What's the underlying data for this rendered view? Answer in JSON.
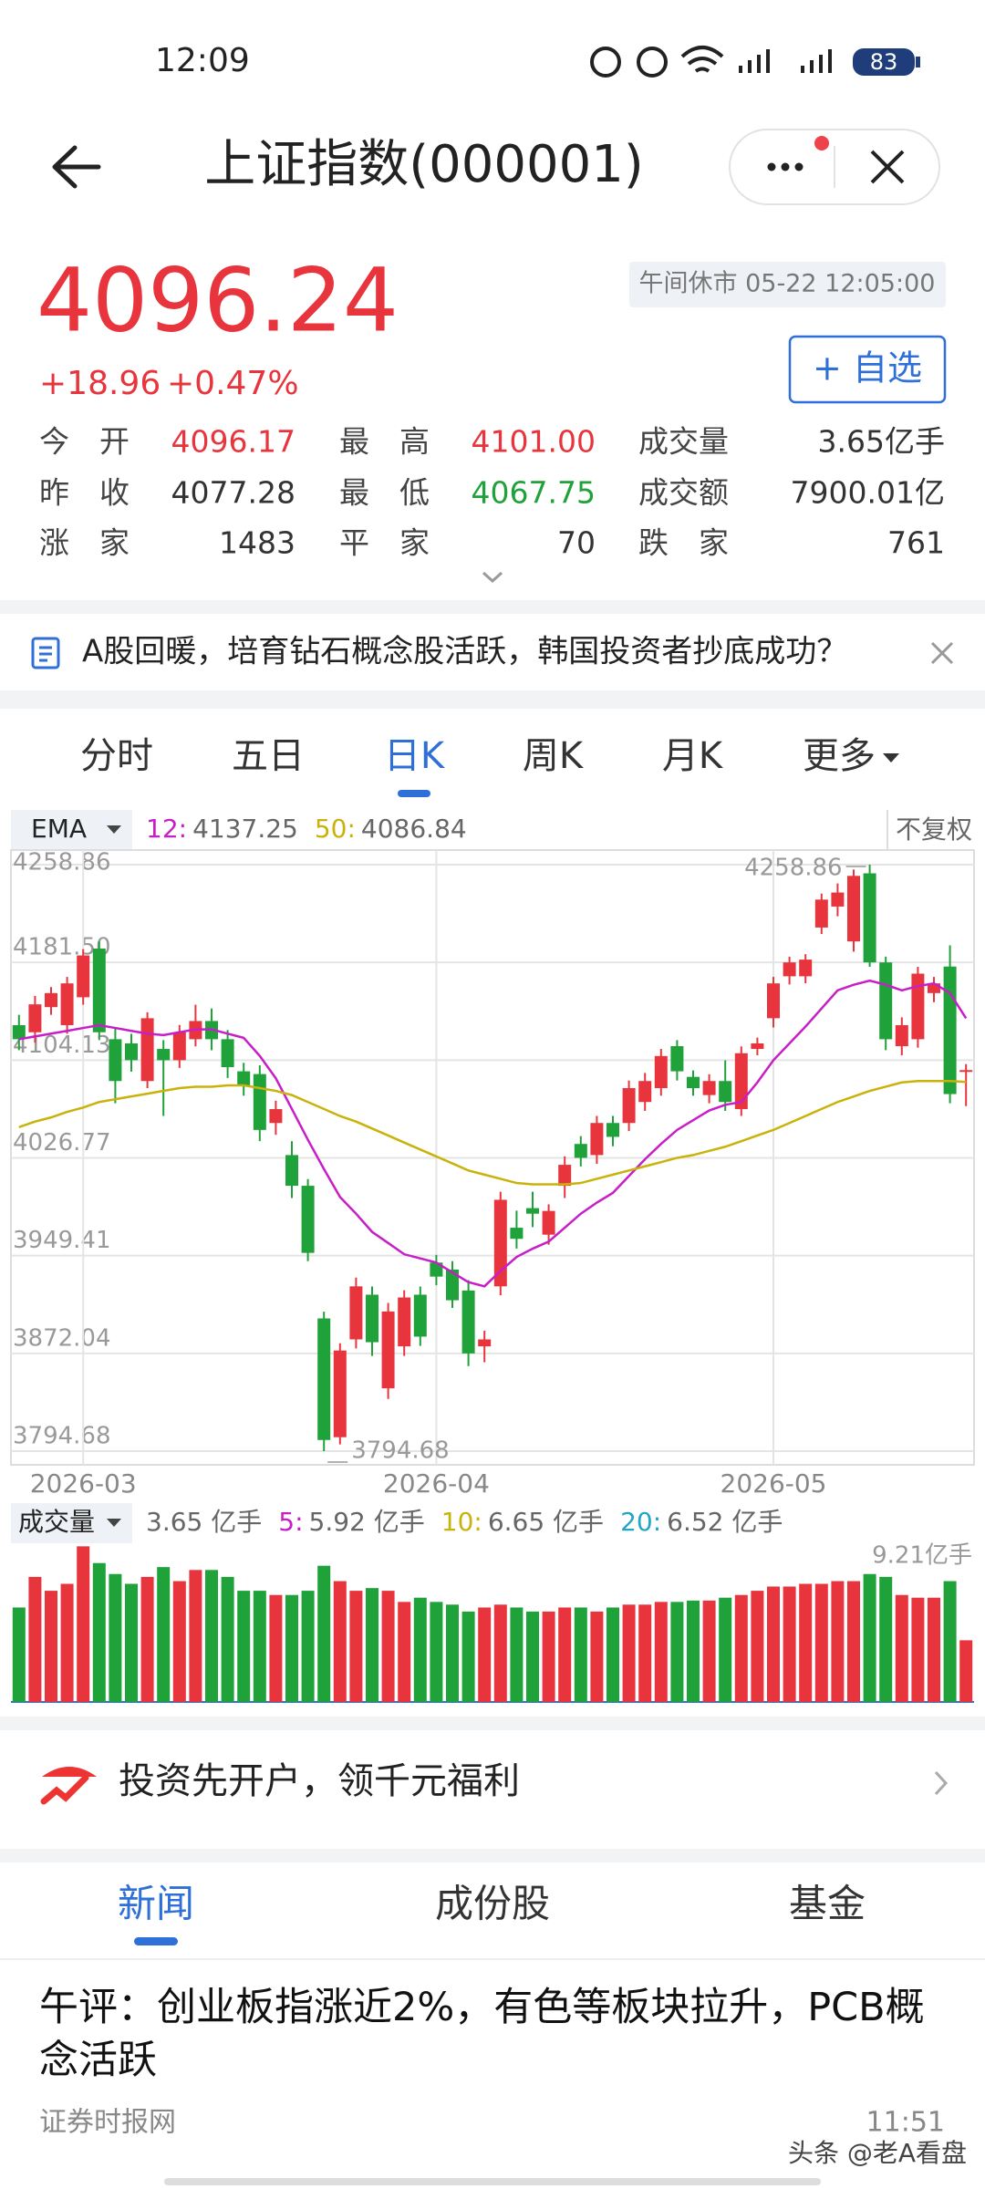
{
  "status_bar": {
    "time": "12:09",
    "battery": "83"
  },
  "header": {
    "title": "上证指数(000001)"
  },
  "quote": {
    "price": "4096.24",
    "change": "+18.96",
    "change_pct": "+0.47%",
    "market_status": "午间休市 05-22 12:05:00",
    "watch_button": "+ 自选",
    "stats": [
      [
        "今　开",
        "4096.17",
        "最　高",
        "4101.00",
        "成交量",
        "3.65亿手"
      ],
      [
        "昨　收",
        "4077.28",
        "最　低",
        "4067.75",
        "成交额",
        "7900.01亿"
      ],
      [
        "涨　家",
        "1483",
        "平　家",
        "70",
        "跌　家",
        "761"
      ]
    ]
  },
  "news_ticker": "A股回暖，培育钻石概念股活跃，韩国投资者抄底成功？",
  "period_tabs": {
    "items": [
      "分时",
      "五日",
      "日K",
      "周K",
      "月K",
      "更多"
    ],
    "active": 2
  },
  "chart_data": [
    {
      "type": "candlestick",
      "indicator": "EMA",
      "adjust": "不复权",
      "categories": [
        null,
        null,
        null,
        null,
        "2026-03",
        null,
        null,
        null,
        null,
        null,
        null,
        null,
        null,
        null,
        null,
        null,
        null,
        null,
        null,
        null,
        null,
        null,
        null,
        null,
        null,
        null,
        "2026-04",
        null,
        null,
        null,
        null,
        null,
        null,
        null,
        null,
        null,
        null,
        null,
        null,
        null,
        null,
        null,
        null,
        null,
        null,
        null,
        null,
        "2026-05",
        null,
        null,
        null,
        null,
        null,
        null,
        null,
        null,
        null,
        null,
        null,
        null
      ],
      "open": [
        4131.8,
        4126.2,
        4146.1,
        4131.8,
        4153.9,
        4192.5,
        4120.7,
        4117.4,
        4087.6,
        4113.0,
        4104.1,
        4120.7,
        4135.1,
        4120.7,
        4095.3,
        4093.1,
        4054.4,
        4029.0,
        4004.7,
        3899.7,
        3805.7,
        3883.1,
        3918.5,
        3844.4,
        3877.6,
        3918.5,
        3943.9,
        3938.4,
        3921.8,
        3877.6,
        3925.1,
        3971.5,
        3987.0,
        3966.0,
        4004.7,
        4037.8,
        4029.0,
        4054.4,
        4054.4,
        4071.0,
        4082.0,
        4115.2,
        4090.9,
        4076.5,
        4087.6,
        4065.4,
        4113.0,
        4137.3,
        4170.5,
        4170.5,
        4209.1,
        4225.7,
        4198.1,
        4252.0,
        4181.5,
        4115.2,
        4120.7,
        4157.2,
        4178.2,
        4096.17
      ],
      "high": [
        4140,
        4155,
        4162,
        4170,
        4192,
        4198,
        4130,
        4125,
        4142,
        4120,
        4132,
        4148,
        4145,
        4128,
        4102,
        4100,
        4072,
        4040,
        4010,
        3905,
        3880,
        3932,
        3925,
        3912,
        3922,
        3925,
        3950,
        3945,
        3930,
        3890,
        4000,
        3985,
        4000,
        3990,
        4028,
        4044,
        4060,
        4060,
        4088,
        4094,
        4113,
        4120,
        4096,
        4093,
        4104,
        4115,
        4122,
        4170,
        4186,
        4188,
        4236,
        4244,
        4255,
        4258.86,
        4186,
        4138,
        4178,
        4170,
        4195,
        4101
      ],
      "low": [
        4112,
        4118,
        4140,
        4125,
        4148,
        4120,
        4070,
        4095,
        4082,
        4060,
        4098,
        4115,
        4112,
        4090,
        4076,
        4040,
        4045,
        3995,
        3945,
        3794.68,
        3800,
        3876,
        3870,
        3836,
        3870,
        3878,
        3926,
        3908,
        3862,
        3865,
        3918,
        3955,
        3972,
        3958,
        3995,
        4020,
        4022,
        4036,
        4048,
        4064,
        4076,
        4088,
        4076,
        4070,
        4064,
        4060,
        4108,
        4130,
        4164,
        4165,
        4204,
        4218,
        4190,
        4178,
        4112,
        4108,
        4114,
        4150,
        4070,
        4067.75
      ],
      "close": [
        4120.7,
        4148.3,
        4157.2,
        4164.9,
        4187.0,
        4126.2,
        4087.6,
        4104.1,
        4137.3,
        4104.1,
        4126.2,
        4135.1,
        4120.7,
        4098.6,
        4084.2,
        4048.9,
        4065.4,
        4004.7,
        3951.6,
        3803.5,
        3874.3,
        3925.1,
        3880.9,
        3905.2,
        3916.3,
        3885.3,
        3932.8,
        3914.1,
        3872.0,
        3883.1,
        3993.6,
        3962.7,
        3982.6,
        3984.8,
        4021.3,
        4026.8,
        4054.4,
        4043.4,
        4082.0,
        4087.6,
        4107.4,
        4095.3,
        4082.0,
        4087.6,
        4071.0,
        4109.6,
        4117.4,
        4164.9,
        4181.5,
        4183.7,
        4231.2,
        4236.8,
        4250.0,
        4181.5,
        4120.7,
        4131.8,
        4172.6,
        4164.9,
        4077.28,
        4096.24
      ],
      "up_color": "#e8353d",
      "down_color": "#1fa23a",
      "series": [
        {
          "name": "12:",
          "color": "#c81ec8",
          "values": [
            4120.7,
            4122.9,
            4125.1,
            4127.3,
            4129.6,
            4131.8,
            4129.6,
            4127.3,
            4125.1,
            4124.0,
            4126.2,
            4128.5,
            4128.5,
            4125.1,
            4121.8,
            4107.5,
            4089.8,
            4065.5,
            4041.1,
            4017.9,
            3995.8,
            3982.6,
            3968.2,
            3959.4,
            3950.5,
            3947.2,
            3943.9,
            3936.1,
            3928.4,
            3925.1,
            3937.3,
            3948.3,
            3954.9,
            3960.5,
            3971.5,
            3982.6,
            3991.4,
            3999.1,
            4012.4,
            4025.7,
            4037.8,
            4048.9,
            4056.6,
            4064.3,
            4068.8,
            4071.0,
            4086.5,
            4104.1,
            4117.4,
            4130.7,
            4145.0,
            4159.4,
            4163.8,
            4167.1,
            4163.8,
            4159.4,
            4162.7,
            4164.9,
            4157.2,
            4137.25
          ]
        },
        {
          "name": "50:",
          "color": "#c9b20a",
          "values": [
            4051.1,
            4055.5,
            4058.8,
            4063.2,
            4066.6,
            4071.0,
            4073.2,
            4075.4,
            4077.6,
            4079.8,
            4082.0,
            4083.1,
            4083.1,
            4084.2,
            4084.2,
            4082.0,
            4079.8,
            4076.5,
            4071.0,
            4065.5,
            4059.9,
            4055.5,
            4050.0,
            4044.5,
            4038.9,
            4033.4,
            4027.9,
            4022.4,
            4016.8,
            4013.5,
            4010.2,
            4006.9,
            4005.8,
            4005.8,
            4005.8,
            4006.9,
            4010.2,
            4013.5,
            4016.8,
            4020.1,
            4023.4,
            4026.8,
            4029.0,
            4032.3,
            4035.6,
            4040.0,
            4044.5,
            4048.9,
            4054.4,
            4059.9,
            4065.5,
            4071.0,
            4075.4,
            4079.8,
            4083.1,
            4086.5,
            4087.6,
            4087.6,
            4087.6,
            4086.84
          ]
        }
      ],
      "ylim": [
        3794.68,
        4258.86
      ],
      "yticks": [
        4258.86,
        {
          "value": 4181.5,
          "label": "4181.50"
        },
        4104.13,
        4026.77,
        3949.41,
        3872.04,
        3794.68
      ],
      "grid": true
    },
    {
      "type": "bar",
      "title": "成交量",
      "values": [
        5.59,
        7.4,
        6.58,
        6.99,
        9.21,
        8.22,
        7.57,
        6.99,
        7.4,
        7.98,
        7.15,
        7.81,
        7.81,
        7.4,
        6.58,
        6.58,
        6.33,
        6.33,
        6.58,
        8.06,
        7.15,
        6.58,
        6.74,
        6.58,
        5.92,
        6.17,
        5.92,
        5.76,
        5.35,
        5.59,
        5.76,
        5.59,
        5.35,
        5.35,
        5.59,
        5.59,
        5.35,
        5.59,
        5.76,
        5.76,
        5.92,
        5.92,
        6.0,
        6.0,
        6.17,
        6.33,
        6.58,
        6.83,
        6.83,
        6.99,
        6.99,
        7.15,
        7.15,
        7.57,
        7.4,
        6.33,
        6.17,
        6.17,
        7.15,
        3.65
      ],
      "current_label": "3.65 亿手",
      "moving_averages": [
        {
          "name": "5:",
          "label": "5.92 亿手",
          "color": "#c81ec8"
        },
        {
          "name": "10:",
          "label": "6.65 亿手",
          "color": "#c9b20a"
        },
        {
          "name": "20:",
          "label": "6.52 亿手",
          "color": "#22a6c8"
        }
      ],
      "max_label": "9.21亿手",
      "ylim": [
        0,
        9.5
      ]
    }
  ],
  "promo": {
    "text": "投资先开户，领千元福利"
  },
  "content_tabs": {
    "items": [
      "新闻",
      "成份股",
      "基金"
    ],
    "active": 0
  },
  "article": {
    "title": "午评：创业板指涨近2%，有色等板块拉升，PCB概念活跃",
    "source": "证券时报网",
    "time": "11:51"
  },
  "watermark": "头条 @老A看盘"
}
